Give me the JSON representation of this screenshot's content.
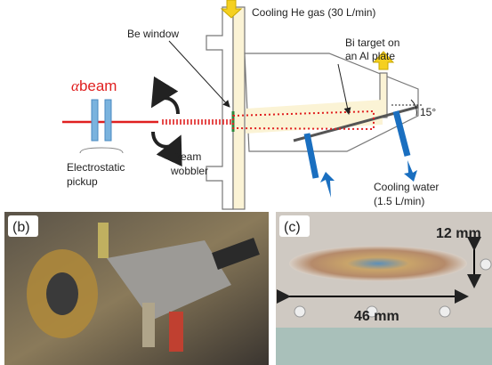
{
  "diagram": {
    "helium_label": "Cooling He gas (30 L/min)",
    "window_label": "Be window",
    "target_label": [
      "Bi target on",
      "an Al plate"
    ],
    "beam_symbol": "α",
    "beam_label": "beam",
    "angle_label": "15°",
    "pickup_label": [
      "Electrostatic",
      "pickup"
    ],
    "wobbler_label": [
      "Beam",
      "wobbler"
    ],
    "water_label": [
      "Cooling water",
      "(1.5 L/min)"
    ]
  },
  "photo_b": {
    "panel_label": "(b)"
  },
  "photo_c": {
    "panel_label": "(c)",
    "height_label": "12 mm",
    "width_label": "46 mm"
  }
}
